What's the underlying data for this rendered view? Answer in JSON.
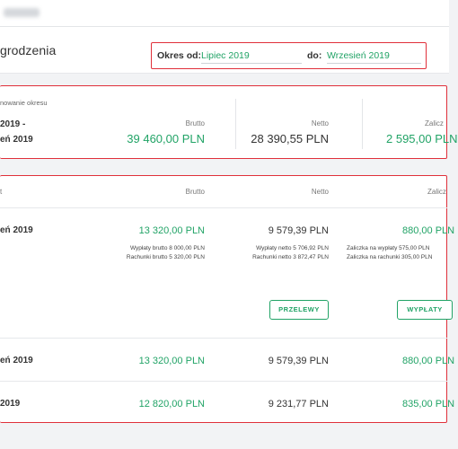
{
  "header": {
    "title": "grodzenia",
    "filter": {
      "from_label": "Okres od:",
      "from_value": "Lipiec 2019",
      "to_label": "do:",
      "to_value": "Wrzesień 2019"
    }
  },
  "summary": {
    "caption": "nowanie okresu",
    "period_line1": "2019 -",
    "period_line2": "eń 2019",
    "columns": [
      {
        "label": "Brutto",
        "value": "39 460,00 PLN"
      },
      {
        "label": "Netto",
        "value": "28 390,55 PLN"
      },
      {
        "label": "Zalicz",
        "value": "2 595,00 PLN"
      }
    ]
  },
  "table": {
    "headers": [
      "t",
      "Brutto",
      "Netto",
      "Zalicz"
    ],
    "rows": [
      {
        "period": "eń 2019",
        "brutto": "13 320,00 PLN",
        "netto": "9 579,39 PLN",
        "zaliczka": "880,00 PLN",
        "brutto_detail_1": "Wypłaty brutto 8 000,00 PLN",
        "brutto_detail_2": "Rachunki brutto 5 320,00 PLN",
        "netto_detail_1": "Wypłaty netto 5 706,92 PLN",
        "netto_detail_2": "Rachunki netto 3 872,47 PLN",
        "zaliczka_detail_1": "Zaliczka na wypłaty 575,00 PLN",
        "zaliczka_detail_2": "Zaliczka na rachunki 305,00 PLN",
        "transfers_button": "PRZELEWY",
        "payouts_button": "WYPŁATY"
      },
      {
        "period": "eń 2019",
        "brutto": "13 320,00 PLN",
        "netto": "9 579,39 PLN",
        "zaliczka": "880,00 PLN"
      },
      {
        "period": "2019",
        "brutto": "12 820,00 PLN",
        "netto": "9 231,77 PLN",
        "zaliczka": "835,00 PLN"
      }
    ]
  },
  "colors": {
    "accent": "#21a366",
    "highlight": "#e0303a",
    "text": "#333333"
  }
}
